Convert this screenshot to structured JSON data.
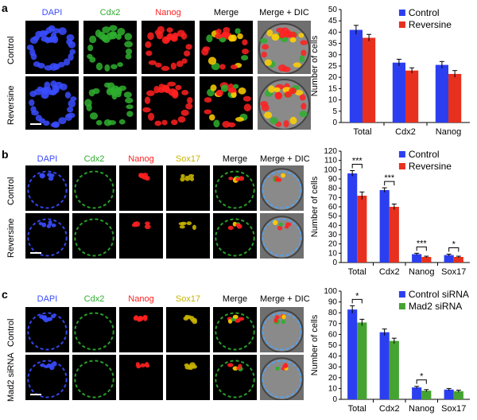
{
  "colors": {
    "blue_channel": "#3a4cff",
    "green_channel": "#2fae2f",
    "red_channel": "#ff2020",
    "yellow_channel": "#c8b400",
    "control_bar": "#2b3ff0",
    "reversine_bar": "#e8301e",
    "mad2_bar": "#45a332",
    "error_bar": "#000000"
  },
  "panels": [
    {
      "letter": "a",
      "channels": [
        "DAPI",
        "Cdx2",
        "Nanog",
        "Merge",
        "Merge + DIC"
      ],
      "rows": [
        "Control",
        "Reversine"
      ]
    },
    {
      "letter": "b",
      "channels": [
        "DAPI",
        "Cdx2",
        "Nanog",
        "Sox17",
        "Merge",
        "Merge + DIC"
      ],
      "rows": [
        "Control",
        "Reversine"
      ]
    },
    {
      "letter": "c",
      "channels": [
        "DAPI",
        "Cdx2",
        "Nanog",
        "Sox17",
        "Merge",
        "Merge + DIC"
      ],
      "rows": [
        "Control",
        "Mad2 siRNA"
      ]
    }
  ],
  "chart_data": [
    {
      "type": "bar",
      "categories": [
        "Total",
        "Cdx2",
        "Nanog"
      ],
      "series": [
        {
          "name": "Control",
          "values": [
            41,
            26.5,
            25.5
          ],
          "errors": [
            2,
            1.5,
            1.5
          ]
        },
        {
          "name": "Reversine",
          "values": [
            37.5,
            23,
            21.5
          ],
          "errors": [
            1.5,
            1.2,
            1.5
          ]
        }
      ],
      "ylabel": "Number of cells",
      "ylim": [
        0,
        50
      ],
      "yticks": [
        0,
        5,
        10,
        15,
        20,
        25,
        30,
        35,
        40,
        45,
        50
      ],
      "legend": "top-right",
      "significance": []
    },
    {
      "type": "bar",
      "categories": [
        "Total",
        "Cdx2",
        "Nanog",
        "Sox17"
      ],
      "series": [
        {
          "name": "Control",
          "values": [
            96,
            78,
            9,
            8
          ],
          "errors": [
            3,
            2.5,
            1,
            1
          ]
        },
        {
          "name": "Reversine",
          "values": [
            72,
            60,
            6,
            6
          ],
          "errors": [
            4,
            3,
            0.8,
            0.8
          ]
        }
      ],
      "ylabel": "Number of cells",
      "ylim": [
        0,
        120
      ],
      "yticks": [
        0,
        10,
        20,
        30,
        40,
        50,
        60,
        70,
        80,
        90,
        100,
        110,
        120
      ],
      "legend": "top-right",
      "significance": [
        {
          "category": 0,
          "label": "***"
        },
        {
          "category": 1,
          "label": "***"
        },
        {
          "category": 2,
          "label": "***"
        },
        {
          "category": 3,
          "label": "*"
        }
      ]
    },
    {
      "type": "bar",
      "categories": [
        "Total",
        "Cdx2",
        "Nanog",
        "Sox17"
      ],
      "series": [
        {
          "name": "Control siRNA",
          "values": [
            83,
            62,
            11,
            9
          ],
          "errors": [
            3.5,
            3,
            1,
            1
          ]
        },
        {
          "name": "Mad2 siRNA",
          "values": [
            71,
            54,
            8,
            7.5
          ],
          "errors": [
            3,
            2.5,
            1,
            1
          ]
        }
      ],
      "ylabel": "Number of cells",
      "ylim": [
        0,
        100
      ],
      "yticks": [
        0,
        10,
        20,
        30,
        40,
        50,
        60,
        70,
        80,
        90,
        100
      ],
      "legend": "top-right",
      "significance": [
        {
          "category": 0,
          "label": "*"
        },
        {
          "category": 2,
          "label": "*"
        }
      ]
    }
  ]
}
